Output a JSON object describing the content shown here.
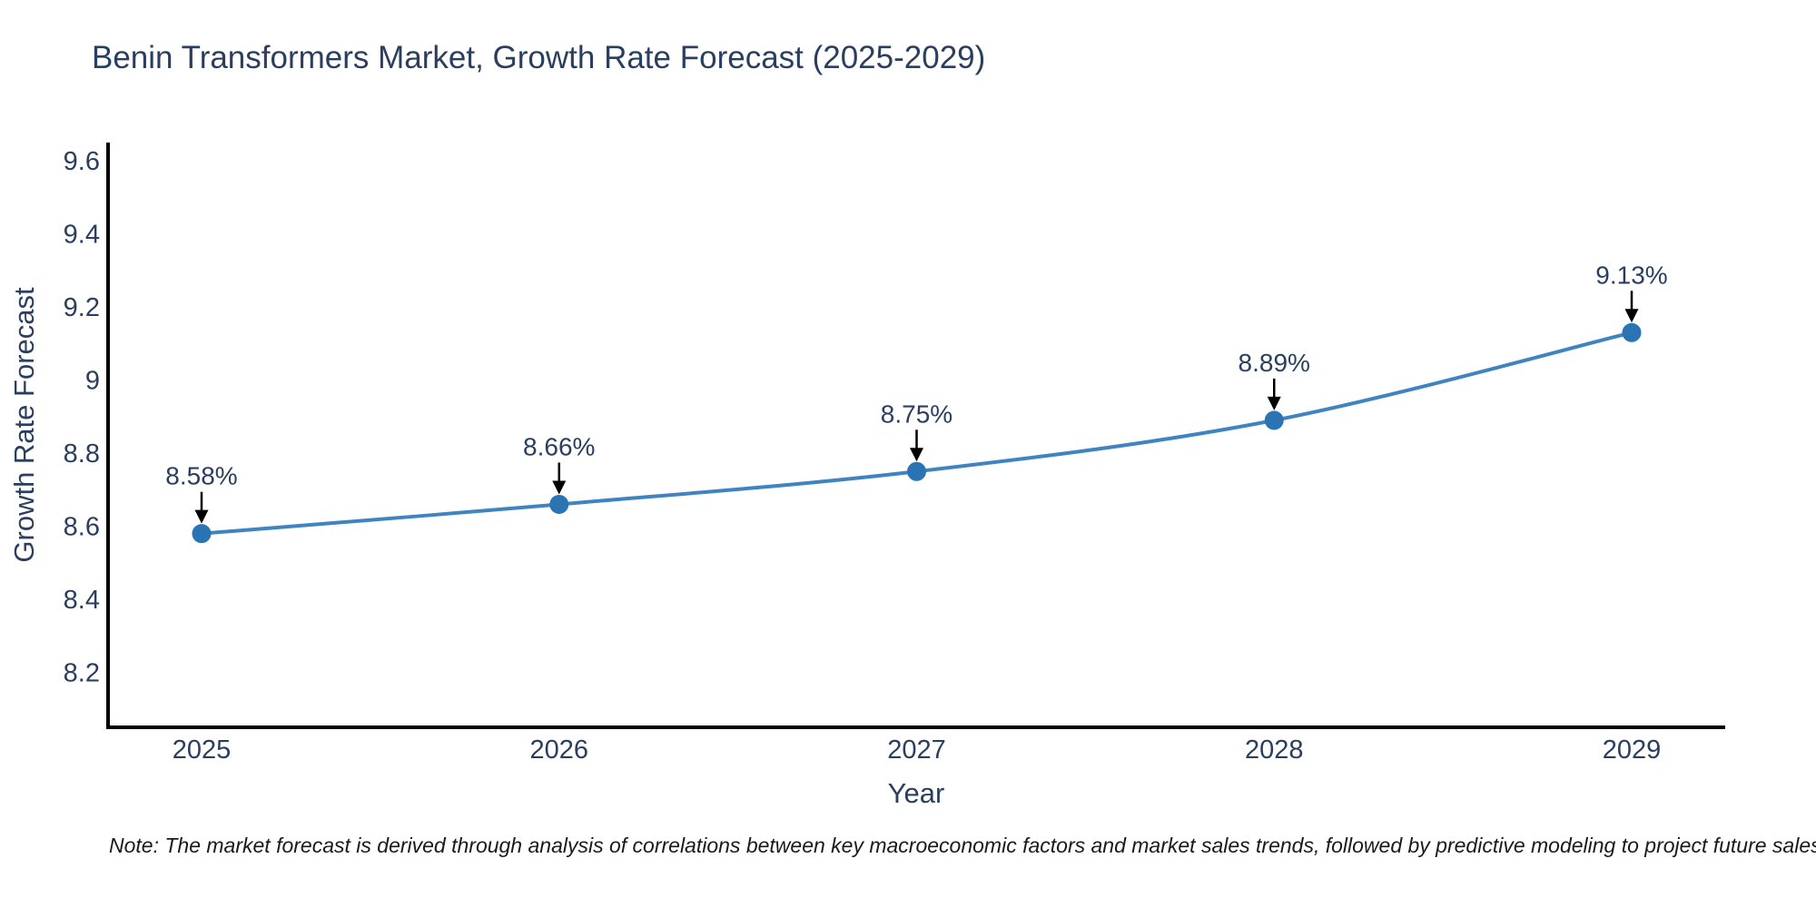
{
  "chart_data": {
    "type": "line",
    "title": "Benin Transformers Market, Growth Rate Forecast (2025-2029)",
    "xlabel": "Year",
    "ylabel": "Growth Rate Forecast",
    "categories": [
      "2025",
      "2026",
      "2027",
      "2028",
      "2029"
    ],
    "series": [
      {
        "name": "Growth Rate Forecast",
        "values": [
          8.58,
          8.66,
          8.75,
          8.89,
          9.13
        ],
        "point_labels": [
          "8.58%",
          "8.66%",
          "8.75%",
          "8.89%",
          "9.13%"
        ]
      }
    ],
    "ytick_labels": [
      "8.2",
      "8.4",
      "8.6",
      "8.8",
      "9",
      "9.2",
      "9.4",
      "9.6"
    ],
    "yticks": [
      8.2,
      8.4,
      8.6,
      8.8,
      9,
      9.2,
      9.4,
      9.6
    ],
    "ylim": [
      8.05,
      9.65
    ],
    "grid": false,
    "legend_position": "none",
    "colors": {
      "line": "#3f83c0",
      "marker": "#2a74b3",
      "axis": "#000000",
      "text": "#2a3f5f",
      "annotation_arrow": "#000000"
    }
  },
  "footnote": "Note: The market forecast is derived through analysis of correlations between key macroeconomic factors and market sales trends, followed by predictive modeling to project future sales"
}
